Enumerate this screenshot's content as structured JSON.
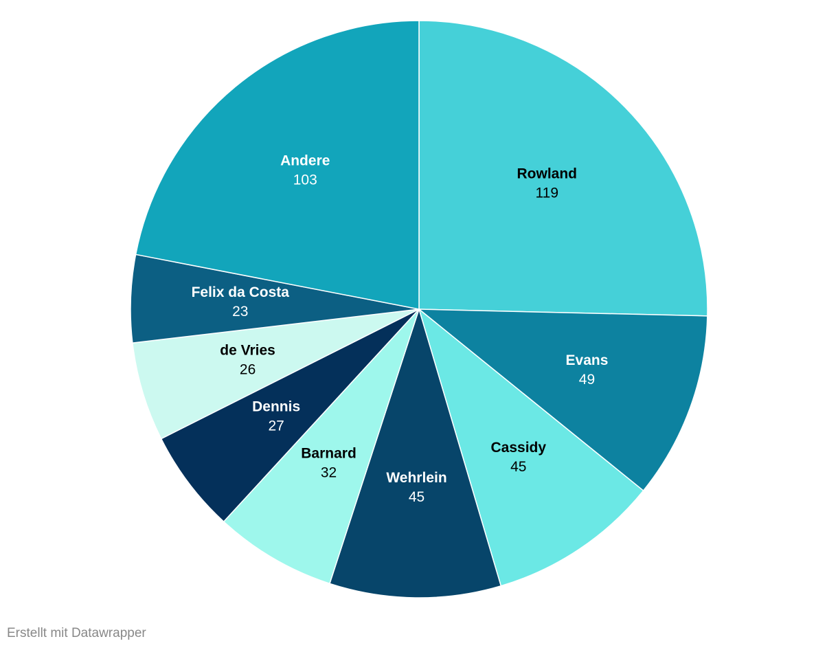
{
  "chart_data": {
    "type": "pie",
    "categories": [
      "Rowland",
      "Evans",
      "Cassidy",
      "Wehrlein",
      "Barnard",
      "Dennis",
      "de Vries",
      "Felix da Costa",
      "Andere"
    ],
    "values": [
      119,
      49,
      45,
      45,
      32,
      27,
      26,
      23,
      103
    ],
    "colors": [
      "#45d0d8",
      "#0d82a0",
      "#6be8e5",
      "#07456a",
      "#9ef7ec",
      "#04305a",
      "#ccf9f0",
      "#0c5f83",
      "#12a5bb"
    ],
    "credit": "Erstellt mit Datawrapper"
  }
}
